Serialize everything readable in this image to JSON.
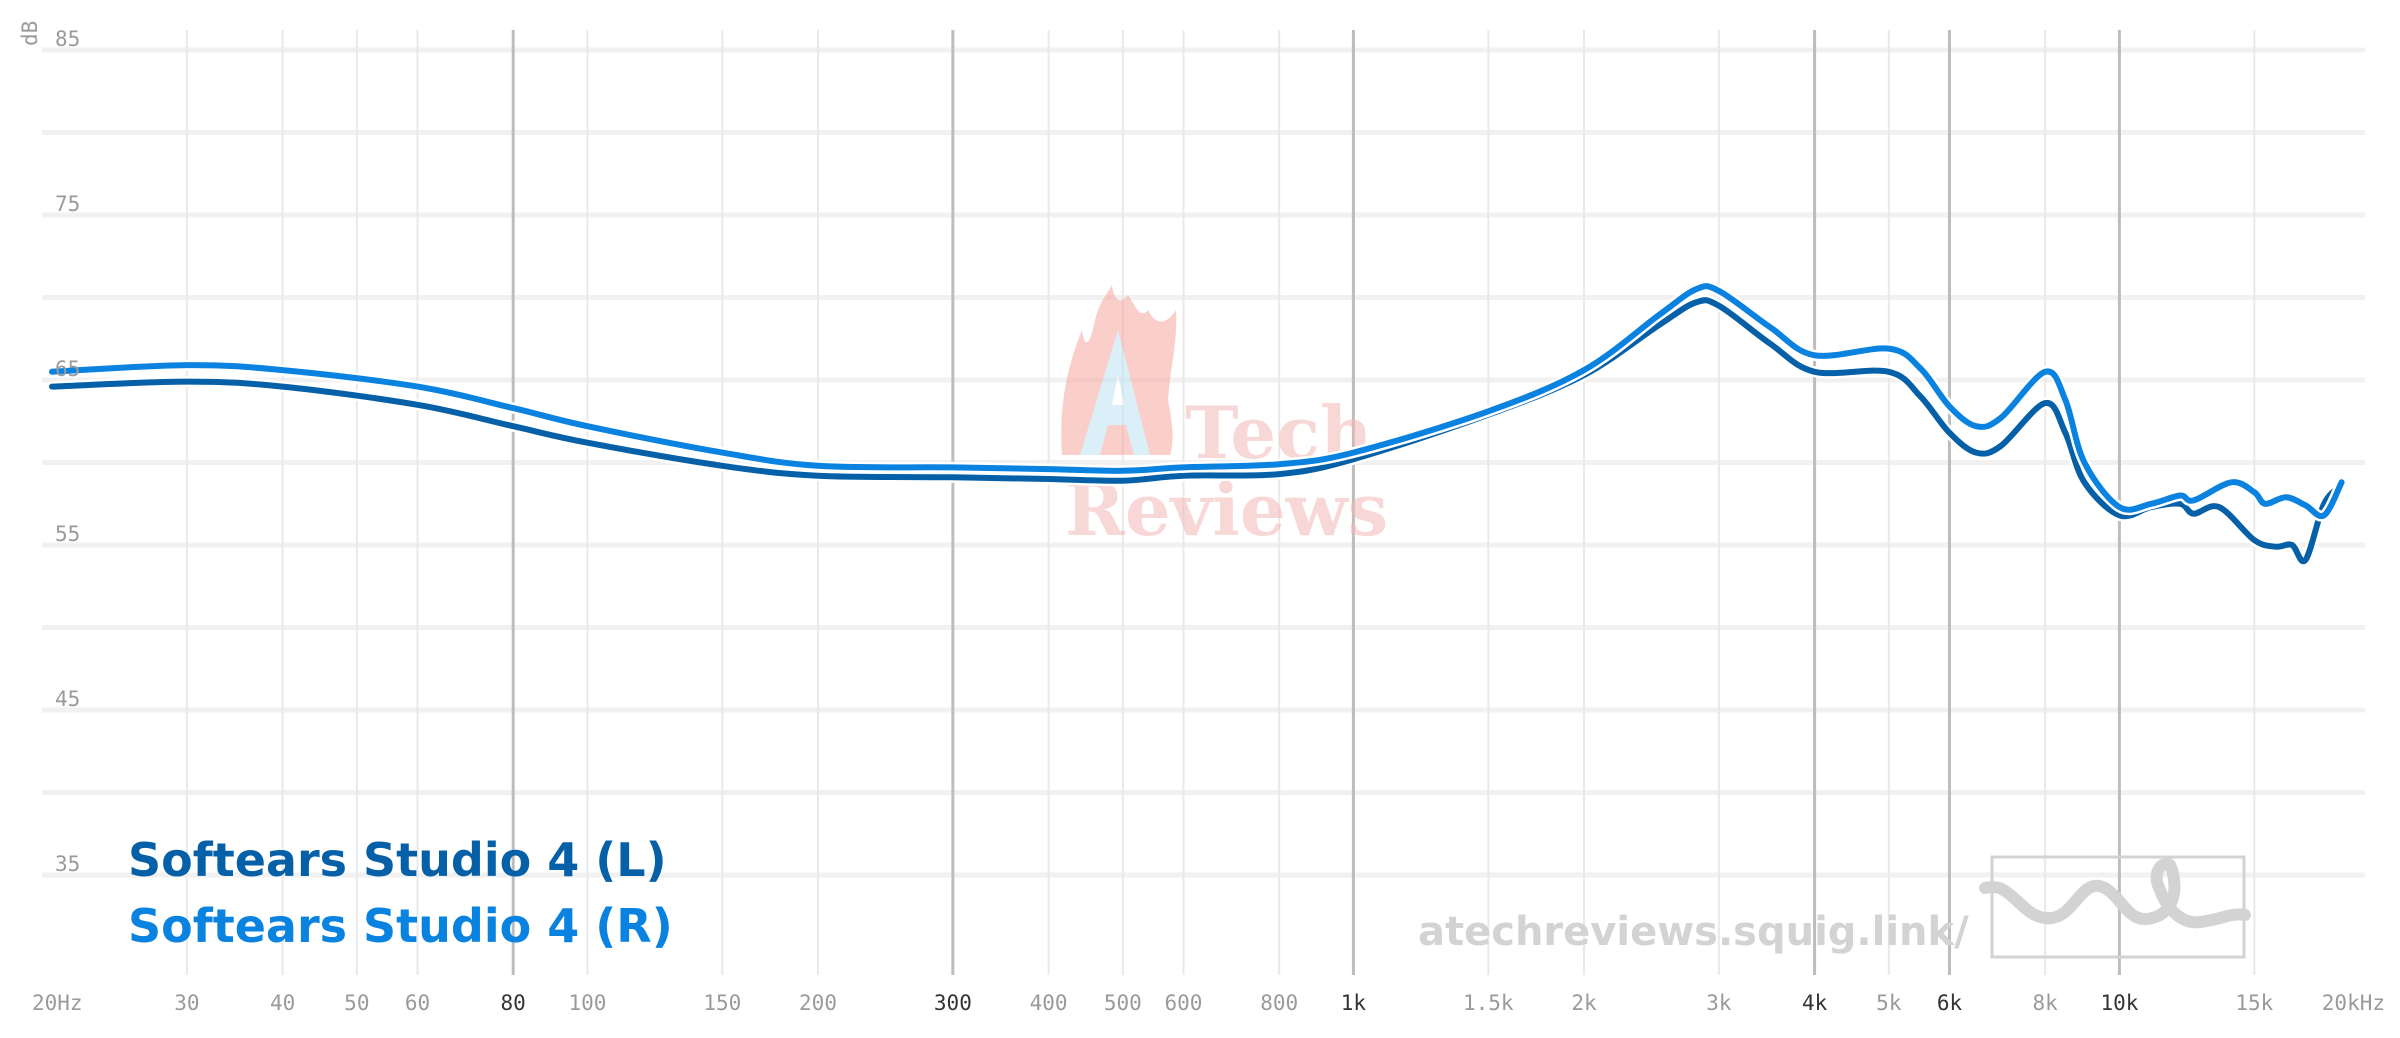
{
  "chart_data": {
    "type": "line",
    "xscale": "log",
    "xlim": [
      20,
      20000
    ],
    "ylim": [
      30,
      87
    ],
    "ylabel": "dB",
    "grid": true,
    "legend_position": "bottom-left",
    "yticks": [
      {
        "v": 85,
        "label": "85"
      },
      {
        "v": 75,
        "label": "75"
      },
      {
        "v": 65,
        "label": "65"
      },
      {
        "v": 55,
        "label": "55"
      },
      {
        "v": 45,
        "label": "45"
      },
      {
        "v": 35,
        "label": "35"
      }
    ],
    "xticks": [
      {
        "v": 20,
        "label": "20Hz",
        "major": false
      },
      {
        "v": 30,
        "label": "30",
        "major": false
      },
      {
        "v": 40,
        "label": "40",
        "major": false
      },
      {
        "v": 50,
        "label": "50",
        "major": false
      },
      {
        "v": 60,
        "label": "60",
        "major": false
      },
      {
        "v": 80,
        "label": "80",
        "major": true
      },
      {
        "v": 100,
        "label": "100",
        "major": false
      },
      {
        "v": 150,
        "label": "150",
        "major": false
      },
      {
        "v": 200,
        "label": "200",
        "major": false
      },
      {
        "v": 300,
        "label": "300",
        "major": true
      },
      {
        "v": 400,
        "label": "400",
        "major": false
      },
      {
        "v": 500,
        "label": "500",
        "major": false
      },
      {
        "v": 600,
        "label": "600",
        "major": false
      },
      {
        "v": 800,
        "label": "800",
        "major": false
      },
      {
        "v": 1000,
        "label": "1k",
        "major": true
      },
      {
        "v": 1500,
        "label": "1.5k",
        "major": false
      },
      {
        "v": 2000,
        "label": "2k",
        "major": false
      },
      {
        "v": 3000,
        "label": "3k",
        "major": false
      },
      {
        "v": 4000,
        "label": "4k",
        "major": true
      },
      {
        "v": 5000,
        "label": "5k",
        "major": false
      },
      {
        "v": 6000,
        "label": "6k",
        "major": true
      },
      {
        "v": 8000,
        "label": "8k",
        "major": false
      },
      {
        "v": 10000,
        "label": "10k",
        "major": true
      },
      {
        "v": 15000,
        "label": "15k",
        "major": false
      },
      {
        "v": 20000,
        "label": "20kHz",
        "major": false
      }
    ],
    "series": [
      {
        "name": "Softears Studio 4 (L)",
        "color": "#0560a8",
        "points": [
          [
            20,
            64.6
          ],
          [
            30,
            64.9
          ],
          [
            40,
            64.6
          ],
          [
            60,
            63.5
          ],
          [
            80,
            62.2
          ],
          [
            100,
            61.2
          ],
          [
            150,
            59.8
          ],
          [
            200,
            59.2
          ],
          [
            300,
            59.1
          ],
          [
            400,
            59.0
          ],
          [
            500,
            58.9
          ],
          [
            600,
            59.2
          ],
          [
            800,
            59.3
          ],
          [
            1000,
            60.2
          ],
          [
            1500,
            62.9
          ],
          [
            2000,
            65.3
          ],
          [
            2500,
            68.3
          ],
          [
            2800,
            69.7
          ],
          [
            3000,
            69.5
          ],
          [
            3500,
            67.2
          ],
          [
            4000,
            65.5
          ],
          [
            5000,
            65.5
          ],
          [
            5500,
            64.0
          ],
          [
            6000,
            61.8
          ],
          [
            6500,
            60.6
          ],
          [
            7000,
            61.0
          ],
          [
            8000,
            63.6
          ],
          [
            8500,
            61.8
          ],
          [
            9000,
            58.8
          ],
          [
            10000,
            56.8
          ],
          [
            11000,
            57.3
          ],
          [
            12000,
            57.5
          ],
          [
            12500,
            56.9
          ],
          [
            13500,
            57.3
          ],
          [
            15000,
            55.3
          ],
          [
            16000,
            54.9
          ],
          [
            16800,
            55.0
          ],
          [
            17500,
            54.1
          ],
          [
            18500,
            57.5
          ],
          [
            19500,
            58.6
          ]
        ]
      },
      {
        "name": "Softears Studio 4 (R)",
        "color": "#0a82e0",
        "points": [
          [
            20,
            65.5
          ],
          [
            30,
            65.9
          ],
          [
            40,
            65.6
          ],
          [
            60,
            64.6
          ],
          [
            80,
            63.3
          ],
          [
            100,
            62.2
          ],
          [
            150,
            60.6
          ],
          [
            200,
            59.8
          ],
          [
            300,
            59.7
          ],
          [
            400,
            59.6
          ],
          [
            500,
            59.5
          ],
          [
            600,
            59.7
          ],
          [
            800,
            59.9
          ],
          [
            1000,
            60.6
          ],
          [
            1500,
            63.1
          ],
          [
            2000,
            65.6
          ],
          [
            2500,
            68.9
          ],
          [
            2800,
            70.5
          ],
          [
            3000,
            70.4
          ],
          [
            3500,
            68.2
          ],
          [
            4000,
            66.5
          ],
          [
            5000,
            66.9
          ],
          [
            5500,
            65.7
          ],
          [
            6000,
            63.4
          ],
          [
            6500,
            62.2
          ],
          [
            7000,
            62.7
          ],
          [
            8000,
            65.5
          ],
          [
            8500,
            63.8
          ],
          [
            9000,
            60.0
          ],
          [
            10000,
            57.3
          ],
          [
            11000,
            57.5
          ],
          [
            12000,
            58.0
          ],
          [
            12500,
            57.7
          ],
          [
            14000,
            58.8
          ],
          [
            15000,
            58.2
          ],
          [
            15500,
            57.5
          ],
          [
            16500,
            57.9
          ],
          [
            17500,
            57.4
          ],
          [
            18500,
            56.8
          ],
          [
            19500,
            58.8
          ]
        ]
      }
    ]
  },
  "legend": {
    "left_label": "Softears Studio 4 (L)",
    "right_label": "Softears Studio 4 (R)"
  },
  "watermark": {
    "line1": "Tech",
    "line2": "Reviews",
    "url": "atechreviews.squig.link/"
  }
}
